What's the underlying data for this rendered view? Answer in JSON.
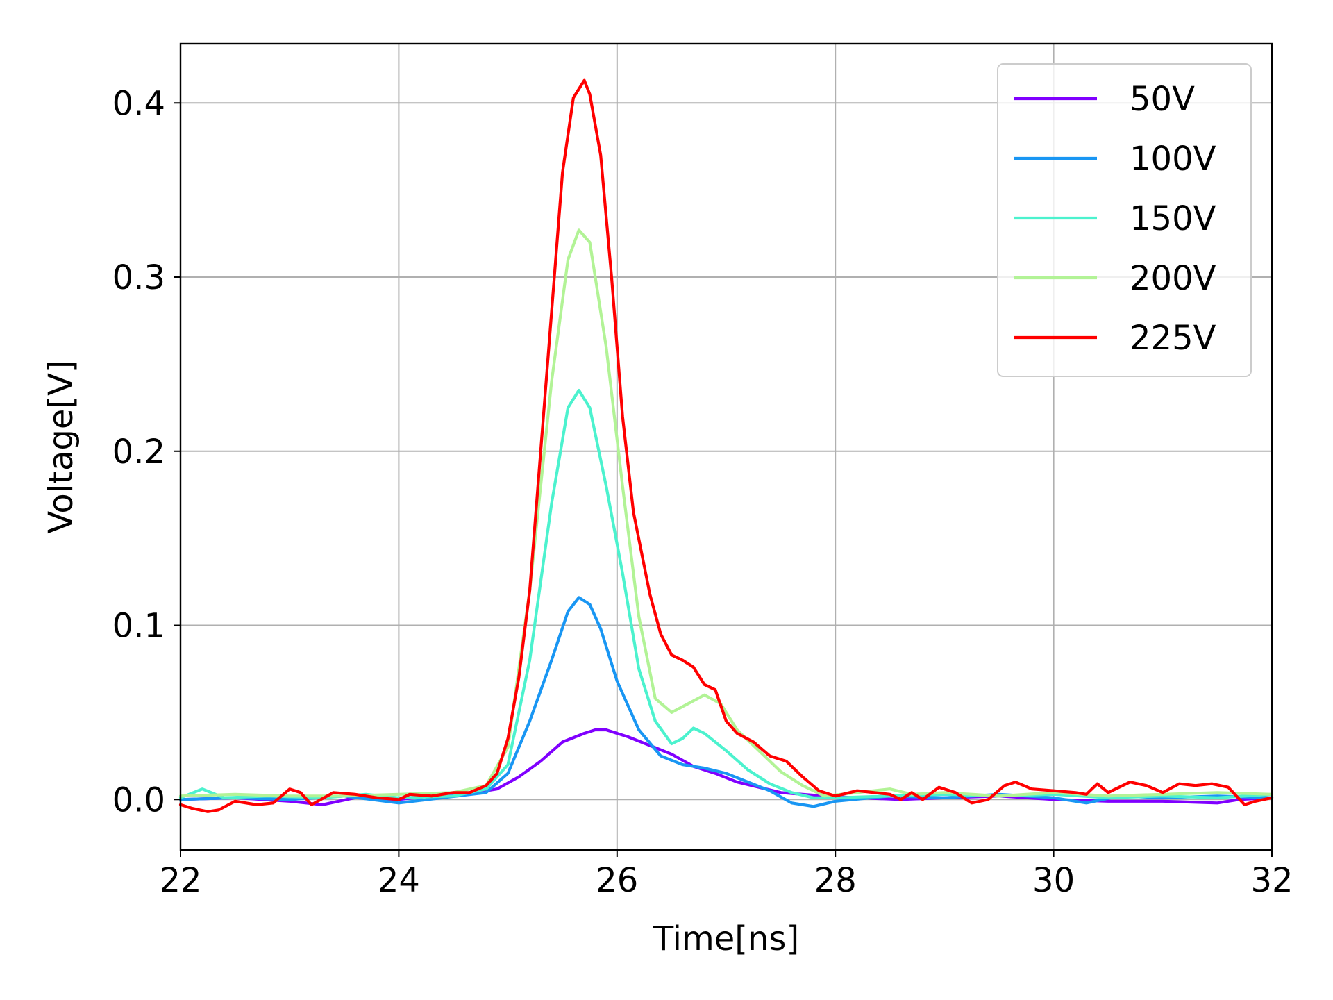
{
  "chart_data": {
    "type": "line",
    "xlabel": "Time[ns]",
    "ylabel": "Voltage[V]",
    "xlim": [
      22,
      32
    ],
    "ylim": [
      -0.029,
      0.434
    ],
    "xticks": [
      22,
      24,
      26,
      28,
      30,
      32
    ],
    "xtick_labels": [
      "22",
      "24",
      "26",
      "28",
      "30",
      "32"
    ],
    "yticks": [
      0.0,
      0.1,
      0.2,
      0.3,
      0.4
    ],
    "ytick_labels": [
      "0.0",
      "0.1",
      "0.2",
      "0.3",
      "0.4"
    ],
    "grid": true,
    "legend_position": "top-right",
    "series": [
      {
        "name": "50V",
        "color": "#8000ff",
        "points": [
          [
            22,
            0.0
          ],
          [
            22.5,
            0.001
          ],
          [
            23,
            -0.001
          ],
          [
            23.3,
            -0.003
          ],
          [
            23.6,
            0.001
          ],
          [
            24,
            0.0
          ],
          [
            24.3,
            0.002
          ],
          [
            24.6,
            0.003
          ],
          [
            24.9,
            0.006
          ],
          [
            25.1,
            0.013
          ],
          [
            25.3,
            0.022
          ],
          [
            25.5,
            0.033
          ],
          [
            25.7,
            0.038
          ],
          [
            25.8,
            0.04
          ],
          [
            25.9,
            0.04
          ],
          [
            26.1,
            0.036
          ],
          [
            26.3,
            0.031
          ],
          [
            26.5,
            0.026
          ],
          [
            26.7,
            0.019
          ],
          [
            26.9,
            0.015
          ],
          [
            27.1,
            0.01
          ],
          [
            27.3,
            0.007
          ],
          [
            27.5,
            0.004
          ],
          [
            27.7,
            0.003
          ],
          [
            27.9,
            0.002
          ],
          [
            28.2,
            0.001
          ],
          [
            28.6,
            0.0
          ],
          [
            29,
            0.001
          ],
          [
            29.5,
            0.002
          ],
          [
            30,
            0.0
          ],
          [
            30.5,
            -0.001
          ],
          [
            31,
            -0.001
          ],
          [
            31.5,
            -0.002
          ],
          [
            31.7,
            0.0
          ],
          [
            32,
            0.001
          ]
        ]
      },
      {
        "name": "100V",
        "color": "#1996f3",
        "points": [
          [
            22,
            0.0
          ],
          [
            22.5,
            0.001
          ],
          [
            23,
            0.0
          ],
          [
            23.5,
            0.002
          ],
          [
            24,
            -0.002
          ],
          [
            24.4,
            0.001
          ],
          [
            24.8,
            0.004
          ],
          [
            25.0,
            0.015
          ],
          [
            25.2,
            0.045
          ],
          [
            25.4,
            0.08
          ],
          [
            25.55,
            0.108
          ],
          [
            25.65,
            0.116
          ],
          [
            25.75,
            0.112
          ],
          [
            25.85,
            0.098
          ],
          [
            26.0,
            0.068
          ],
          [
            26.2,
            0.04
          ],
          [
            26.4,
            0.025
          ],
          [
            26.6,
            0.02
          ],
          [
            26.8,
            0.018
          ],
          [
            27.0,
            0.015
          ],
          [
            27.2,
            0.01
          ],
          [
            27.4,
            0.005
          ],
          [
            27.6,
            -0.002
          ],
          [
            27.8,
            -0.004
          ],
          [
            28.0,
            -0.001
          ],
          [
            28.5,
            0.002
          ],
          [
            29,
            0.001
          ],
          [
            29.5,
            0.003
          ],
          [
            30,
            0.001
          ],
          [
            30.3,
            -0.002
          ],
          [
            30.6,
            0.002
          ],
          [
            31,
            0.001
          ],
          [
            31.5,
            0.002
          ],
          [
            32,
            0.001
          ]
        ]
      },
      {
        "name": "150V",
        "color": "#4cf2ce",
        "points": [
          [
            22,
            0.001
          ],
          [
            22.2,
            0.006
          ],
          [
            22.4,
            0.001
          ],
          [
            22.8,
            0.002
          ],
          [
            23.3,
            0.001
          ],
          [
            23.7,
            0.003
          ],
          [
            24,
            0.001
          ],
          [
            24.5,
            0.002
          ],
          [
            24.8,
            0.006
          ],
          [
            25.0,
            0.02
          ],
          [
            25.2,
            0.08
          ],
          [
            25.4,
            0.17
          ],
          [
            25.55,
            0.225
          ],
          [
            25.65,
            0.235
          ],
          [
            25.75,
            0.225
          ],
          [
            25.9,
            0.18
          ],
          [
            26.05,
            0.13
          ],
          [
            26.2,
            0.075
          ],
          [
            26.35,
            0.045
          ],
          [
            26.5,
            0.032
          ],
          [
            26.6,
            0.035
          ],
          [
            26.7,
            0.041
          ],
          [
            26.8,
            0.038
          ],
          [
            27.0,
            0.028
          ],
          [
            27.2,
            0.017
          ],
          [
            27.4,
            0.009
          ],
          [
            27.6,
            0.004
          ],
          [
            27.8,
            0.001
          ],
          [
            28.0,
            0.001
          ],
          [
            28.5,
            0.002
          ],
          [
            29,
            0.003
          ],
          [
            29.5,
            0.002
          ],
          [
            30,
            0.003
          ],
          [
            30.5,
            0.001
          ],
          [
            31,
            0.002
          ],
          [
            31.5,
            0.001
          ],
          [
            32,
            0.003
          ]
        ]
      },
      {
        "name": "200V",
        "color": "#b2f396",
        "points": [
          [
            22,
            0.002
          ],
          [
            22.5,
            0.003
          ],
          [
            23,
            0.002
          ],
          [
            23.5,
            0.002
          ],
          [
            24,
            0.003
          ],
          [
            24.5,
            0.004
          ],
          [
            24.8,
            0.008
          ],
          [
            25.0,
            0.03
          ],
          [
            25.2,
            0.12
          ],
          [
            25.4,
            0.24
          ],
          [
            25.55,
            0.31
          ],
          [
            25.65,
            0.327
          ],
          [
            25.75,
            0.32
          ],
          [
            25.9,
            0.26
          ],
          [
            26.05,
            0.18
          ],
          [
            26.2,
            0.105
          ],
          [
            26.35,
            0.058
          ],
          [
            26.5,
            0.05
          ],
          [
            26.65,
            0.055
          ],
          [
            26.8,
            0.06
          ],
          [
            26.95,
            0.055
          ],
          [
            27.1,
            0.04
          ],
          [
            27.3,
            0.028
          ],
          [
            27.5,
            0.016
          ],
          [
            27.7,
            0.008
          ],
          [
            27.9,
            0.002
          ],
          [
            28.2,
            0.004
          ],
          [
            28.5,
            0.006
          ],
          [
            28.7,
            0.003
          ],
          [
            29,
            0.004
          ],
          [
            29.5,
            0.002
          ],
          [
            30,
            0.004
          ],
          [
            30.5,
            0.002
          ],
          [
            31,
            0.003
          ],
          [
            31.5,
            0.004
          ],
          [
            32,
            0.003
          ]
        ]
      },
      {
        "name": "225V",
        "color": "#ff0000",
        "points": [
          [
            22,
            -0.003
          ],
          [
            22.1,
            -0.005
          ],
          [
            22.25,
            -0.007
          ],
          [
            22.35,
            -0.006
          ],
          [
            22.5,
            -0.001
          ],
          [
            22.7,
            -0.003
          ],
          [
            22.85,
            -0.002
          ],
          [
            23.0,
            0.006
          ],
          [
            23.1,
            0.004
          ],
          [
            23.2,
            -0.003
          ],
          [
            23.4,
            0.004
          ],
          [
            23.6,
            0.003
          ],
          [
            23.8,
            0.001
          ],
          [
            24.0,
            0.0
          ],
          [
            24.1,
            0.003
          ],
          [
            24.3,
            0.002
          ],
          [
            24.5,
            0.004
          ],
          [
            24.65,
            0.004
          ],
          [
            24.8,
            0.008
          ],
          [
            24.9,
            0.015
          ],
          [
            25.0,
            0.035
          ],
          [
            25.1,
            0.07
          ],
          [
            25.2,
            0.12
          ],
          [
            25.3,
            0.2
          ],
          [
            25.4,
            0.28
          ],
          [
            25.5,
            0.36
          ],
          [
            25.6,
            0.403
          ],
          [
            25.7,
            0.413
          ],
          [
            25.75,
            0.405
          ],
          [
            25.85,
            0.37
          ],
          [
            25.95,
            0.3
          ],
          [
            26.05,
            0.22
          ],
          [
            26.15,
            0.165
          ],
          [
            26.3,
            0.118
          ],
          [
            26.4,
            0.095
          ],
          [
            26.5,
            0.083
          ],
          [
            26.6,
            0.08
          ],
          [
            26.7,
            0.076
          ],
          [
            26.8,
            0.066
          ],
          [
            26.9,
            0.063
          ],
          [
            27.0,
            0.045
          ],
          [
            27.1,
            0.038
          ],
          [
            27.25,
            0.033
          ],
          [
            27.4,
            0.025
          ],
          [
            27.55,
            0.022
          ],
          [
            27.7,
            0.013
          ],
          [
            27.85,
            0.005
          ],
          [
            28.0,
            0.002
          ],
          [
            28.2,
            0.005
          ],
          [
            28.5,
            0.003
          ],
          [
            28.6,
            0.0
          ],
          [
            28.7,
            0.004
          ],
          [
            28.8,
            0.0
          ],
          [
            28.95,
            0.007
          ],
          [
            29.1,
            0.004
          ],
          [
            29.25,
            -0.002
          ],
          [
            29.4,
            0.0
          ],
          [
            29.55,
            0.008
          ],
          [
            29.65,
            0.01
          ],
          [
            29.8,
            0.006
          ],
          [
            30.0,
            0.005
          ],
          [
            30.2,
            0.004
          ],
          [
            30.3,
            0.003
          ],
          [
            30.4,
            0.009
          ],
          [
            30.5,
            0.004
          ],
          [
            30.7,
            0.01
          ],
          [
            30.85,
            0.008
          ],
          [
            31.0,
            0.004
          ],
          [
            31.15,
            0.009
          ],
          [
            31.3,
            0.008
          ],
          [
            31.45,
            0.009
          ],
          [
            31.6,
            0.007
          ],
          [
            31.75,
            -0.003
          ],
          [
            31.85,
            -0.001
          ],
          [
            32.0,
            0.001
          ]
        ]
      }
    ]
  }
}
